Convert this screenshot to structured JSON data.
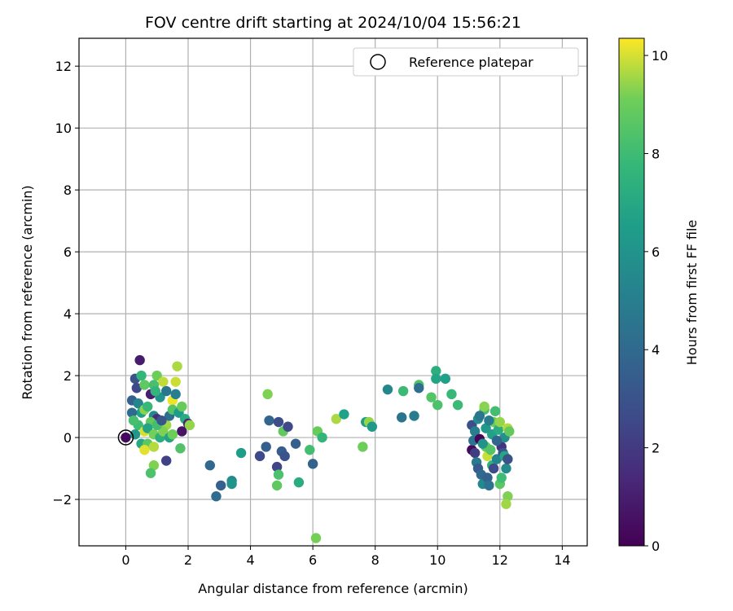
{
  "chart_data": {
    "type": "scatter",
    "title": "FOV centre drift starting at 2024/10/04 15:56:21",
    "xlabel": "Angular distance from reference (arcmin)",
    "ylabel": "Rotation from reference (arcmin)",
    "xlim": [
      -1.5,
      14.8
    ],
    "ylim": [
      -3.5,
      12.9
    ],
    "xticks": [
      0,
      2,
      4,
      6,
      8,
      10,
      12,
      14
    ],
    "yticks": [
      -2,
      0,
      2,
      4,
      6,
      8,
      10,
      12
    ],
    "grid": true,
    "colormap": "viridis",
    "colorbar": {
      "label": "Hours from first FF file",
      "min": 0,
      "max": 10.35,
      "ticks": [
        0,
        2,
        4,
        6,
        8,
        10
      ]
    },
    "legend": {
      "position": "top-right",
      "entries": [
        "Reference platepar"
      ]
    },
    "reference_point": {
      "x": 0,
      "y": 0
    },
    "points": [
      {
        "x": 0.45,
        "y": 2.5,
        "c": 0.9
      },
      {
        "x": 0.3,
        "y": 1.9,
        "c": 3.0
      },
      {
        "x": 0.5,
        "y": 2.0,
        "c": 7.7
      },
      {
        "x": 0.35,
        "y": 1.6,
        "c": 2.5
      },
      {
        "x": 0.6,
        "y": 1.7,
        "c": 8.7
      },
      {
        "x": 0.2,
        "y": 1.2,
        "c": 3.6
      },
      {
        "x": 0.4,
        "y": 1.1,
        "c": 5.3
      },
      {
        "x": 0.8,
        "y": 1.4,
        "c": 1.0
      },
      {
        "x": 1.0,
        "y": 2.0,
        "c": 9.0
      },
      {
        "x": 1.2,
        "y": 1.8,
        "c": 9.8
      },
      {
        "x": 0.9,
        "y": 1.7,
        "c": 8.2
      },
      {
        "x": 1.1,
        "y": 1.3,
        "c": 6.0
      },
      {
        "x": 1.3,
        "y": 1.5,
        "c": 4.6
      },
      {
        "x": 1.5,
        "y": 1.2,
        "c": 10.2
      },
      {
        "x": 1.65,
        "y": 2.3,
        "c": 9.6
      },
      {
        "x": 1.6,
        "y": 1.8,
        "c": 9.9
      },
      {
        "x": 0.5,
        "y": 0.8,
        "c": 6.5
      },
      {
        "x": 0.6,
        "y": 0.9,
        "c": 9.3
      },
      {
        "x": 0.7,
        "y": 1.0,
        "c": 7.8
      },
      {
        "x": 0.9,
        "y": 0.7,
        "c": 5.5
      },
      {
        "x": 1.0,
        "y": 0.6,
        "c": 1.5
      },
      {
        "x": 0.8,
        "y": 0.5,
        "c": 8.8
      },
      {
        "x": 0.4,
        "y": 0.4,
        "c": 8.0
      },
      {
        "x": 0.6,
        "y": 0.2,
        "c": 10.0
      },
      {
        "x": 0.7,
        "y": 0.3,
        "c": 6.8
      },
      {
        "x": 0.9,
        "y": 0.1,
        "c": 9.1
      },
      {
        "x": 1.1,
        "y": 0.0,
        "c": 7.3
      },
      {
        "x": 1.3,
        "y": 0.4,
        "c": 9.5
      },
      {
        "x": 1.4,
        "y": 0.7,
        "c": 4.2
      },
      {
        "x": 1.5,
        "y": 0.9,
        "c": 8.5
      },
      {
        "x": 1.7,
        "y": 0.8,
        "c": 6.3
      },
      {
        "x": 1.8,
        "y": 1.0,
        "c": 8.9
      },
      {
        "x": 1.9,
        "y": 0.6,
        "c": 7.1
      },
      {
        "x": 1.8,
        "y": 0.2,
        "c": 0.6
      },
      {
        "x": 2.0,
        "y": 0.45,
        "c": 1.2
      },
      {
        "x": 2.05,
        "y": 0.4,
        "c": 9.4
      },
      {
        "x": 1.2,
        "y": 0.2,
        "c": 9.2
      },
      {
        "x": 1.0,
        "y": 0.4,
        "c": 8.1
      },
      {
        "x": 0.5,
        "y": -0.2,
        "c": 7.0
      },
      {
        "x": 0.7,
        "y": -0.2,
        "c": 8.6
      },
      {
        "x": 0.6,
        "y": -0.4,
        "c": 10.1
      },
      {
        "x": 0.9,
        "y": -0.3,
        "c": 9.7
      },
      {
        "x": 1.4,
        "y": 0.0,
        "c": 6.7
      },
      {
        "x": 1.5,
        "y": 0.1,
        "c": 9.0
      },
      {
        "x": 1.3,
        "y": -0.75,
        "c": 2.3
      },
      {
        "x": 1.75,
        "y": -0.35,
        "c": 8.4
      },
      {
        "x": 0.9,
        "y": -0.9,
        "c": 9.2
      },
      {
        "x": 0.8,
        "y": -1.15,
        "c": 8.3
      },
      {
        "x": 0.2,
        "y": 0.8,
        "c": 4.0
      },
      {
        "x": 0.3,
        "y": 0.1,
        "c": 6.1
      },
      {
        "x": 1.15,
        "y": 0.55,
        "c": 3.1
      },
      {
        "x": 0.95,
        "y": 1.5,
        "c": 7.6
      },
      {
        "x": 1.6,
        "y": 1.4,
        "c": 5.0
      },
      {
        "x": 0.25,
        "y": 0.55,
        "c": 8.2
      },
      {
        "x": 2.7,
        "y": -0.9,
        "c": 3.9
      },
      {
        "x": 2.9,
        "y": -1.9,
        "c": 4.1
      },
      {
        "x": 3.05,
        "y": -1.55,
        "c": 3.6
      },
      {
        "x": 3.4,
        "y": -1.4,
        "c": 5.6
      },
      {
        "x": 3.4,
        "y": -1.5,
        "c": 6.0
      },
      {
        "x": 3.7,
        "y": -0.5,
        "c": 6.4
      },
      {
        "x": 4.3,
        "y": -0.6,
        "c": 2.6
      },
      {
        "x": 4.5,
        "y": -0.3,
        "c": 3.5
      },
      {
        "x": 4.55,
        "y": 1.4,
        "c": 9.2
      },
      {
        "x": 4.6,
        "y": 0.55,
        "c": 3.8
      },
      {
        "x": 4.85,
        "y": -0.95,
        "c": 2.4
      },
      {
        "x": 4.9,
        "y": 0.5,
        "c": 2.7
      },
      {
        "x": 4.9,
        "y": -1.2,
        "c": 8.3
      },
      {
        "x": 4.85,
        "y": -1.55,
        "c": 8.7
      },
      {
        "x": 5.0,
        "y": -0.45,
        "c": 3.4
      },
      {
        "x": 5.05,
        "y": 0.2,
        "c": 8.8
      },
      {
        "x": 5.1,
        "y": -0.6,
        "c": 3.0
      },
      {
        "x": 5.2,
        "y": 0.35,
        "c": 2.5
      },
      {
        "x": 5.45,
        "y": -0.2,
        "c": 3.5
      },
      {
        "x": 5.55,
        "y": -1.45,
        "c": 7.2
      },
      {
        "x": 5.9,
        "y": -0.4,
        "c": 8.1
      },
      {
        "x": 6.0,
        "y": -0.85,
        "c": 3.7
      },
      {
        "x": 6.1,
        "y": -3.25,
        "c": 9.1
      },
      {
        "x": 6.15,
        "y": 0.2,
        "c": 8.9
      },
      {
        "x": 6.3,
        "y": 0.0,
        "c": 7.6
      },
      {
        "x": 6.75,
        "y": 0.6,
        "c": 9.6
      },
      {
        "x": 7.0,
        "y": 0.75,
        "c": 6.6
      },
      {
        "x": 7.6,
        "y": -0.3,
        "c": 9.0
      },
      {
        "x": 7.7,
        "y": 0.5,
        "c": 6.4
      },
      {
        "x": 7.8,
        "y": 0.5,
        "c": 9.4
      },
      {
        "x": 7.9,
        "y": 0.35,
        "c": 6.2
      },
      {
        "x": 8.4,
        "y": 1.55,
        "c": 5.4
      },
      {
        "x": 8.85,
        "y": 0.65,
        "c": 4.5
      },
      {
        "x": 8.9,
        "y": 1.5,
        "c": 7.9
      },
      {
        "x": 9.25,
        "y": 0.7,
        "c": 4.9
      },
      {
        "x": 9.4,
        "y": 1.7,
        "c": 8.4
      },
      {
        "x": 9.4,
        "y": 1.6,
        "c": 4.2
      },
      {
        "x": 9.8,
        "y": 1.3,
        "c": 8.5
      },
      {
        "x": 9.95,
        "y": 2.15,
        "c": 7.3
      },
      {
        "x": 9.95,
        "y": 1.9,
        "c": 6.8
      },
      {
        "x": 10.0,
        "y": 1.05,
        "c": 8.3
      },
      {
        "x": 10.25,
        "y": 1.9,
        "c": 6.5
      },
      {
        "x": 10.45,
        "y": 1.4,
        "c": 7.8
      },
      {
        "x": 10.65,
        "y": 1.05,
        "c": 7.9
      },
      {
        "x": 11.1,
        "y": 0.4,
        "c": 2.8
      },
      {
        "x": 11.2,
        "y": 0.2,
        "c": 5.0
      },
      {
        "x": 11.1,
        "y": -0.4,
        "c": 0.3
      },
      {
        "x": 11.15,
        "y": -0.1,
        "c": 4.5
      },
      {
        "x": 11.2,
        "y": -0.5,
        "c": 2.1
      },
      {
        "x": 11.25,
        "y": -0.8,
        "c": 4.8
      },
      {
        "x": 11.3,
        "y": -1.0,
        "c": 3.3
      },
      {
        "x": 11.3,
        "y": 0.6,
        "c": 5.7
      },
      {
        "x": 11.35,
        "y": -0.05,
        "c": 0.1
      },
      {
        "x": 11.4,
        "y": -1.2,
        "c": 4.0
      },
      {
        "x": 11.45,
        "y": -1.5,
        "c": 5.5
      },
      {
        "x": 11.5,
        "y": 0.9,
        "c": 8.2
      },
      {
        "x": 11.5,
        "y": 1.0,
        "c": 9.3
      },
      {
        "x": 11.55,
        "y": 0.3,
        "c": 6.2
      },
      {
        "x": 11.55,
        "y": -0.3,
        "c": 8.8
      },
      {
        "x": 11.6,
        "y": -0.6,
        "c": 9.9
      },
      {
        "x": 11.6,
        "y": -1.3,
        "c": 3.6
      },
      {
        "x": 11.65,
        "y": -1.55,
        "c": 4.4
      },
      {
        "x": 11.7,
        "y": -0.4,
        "c": 8.5
      },
      {
        "x": 11.75,
        "y": 0.1,
        "c": 6.6
      },
      {
        "x": 11.75,
        "y": -0.9,
        "c": 7.4
      },
      {
        "x": 11.8,
        "y": 0.5,
        "c": 8.9
      },
      {
        "x": 11.8,
        "y": -1.0,
        "c": 2.6
      },
      {
        "x": 11.85,
        "y": 0.85,
        "c": 8.1
      },
      {
        "x": 11.9,
        "y": -0.7,
        "c": 5.3
      },
      {
        "x": 11.95,
        "y": 0.25,
        "c": 7.2
      },
      {
        "x": 12.0,
        "y": -1.5,
        "c": 8.6
      },
      {
        "x": 12.0,
        "y": 0.5,
        "c": 9.4
      },
      {
        "x": 12.05,
        "y": -0.3,
        "c": 1.8
      },
      {
        "x": 12.05,
        "y": -1.3,
        "c": 8.0
      },
      {
        "x": 12.1,
        "y": -0.5,
        "c": 3.1
      },
      {
        "x": 12.15,
        "y": 0.0,
        "c": 5.8
      },
      {
        "x": 12.15,
        "y": -0.6,
        "c": 6.9
      },
      {
        "x": 12.2,
        "y": -1.0,
        "c": 5.6
      },
      {
        "x": 12.25,
        "y": 0.3,
        "c": 9.7
      },
      {
        "x": 12.25,
        "y": -0.7,
        "c": 2.9
      },
      {
        "x": 12.25,
        "y": -1.9,
        "c": 9.2
      },
      {
        "x": 12.2,
        "y": -2.15,
        "c": 9.5
      },
      {
        "x": 12.3,
        "y": 0.2,
        "c": 8.8
      },
      {
        "x": 11.35,
        "y": 0.7,
        "c": 4.6
      },
      {
        "x": 11.45,
        "y": -0.2,
        "c": 5.9
      },
      {
        "x": 11.65,
        "y": 0.55,
        "c": 4.9
      },
      {
        "x": 11.9,
        "y": -0.1,
        "c": 3.8
      }
    ]
  }
}
